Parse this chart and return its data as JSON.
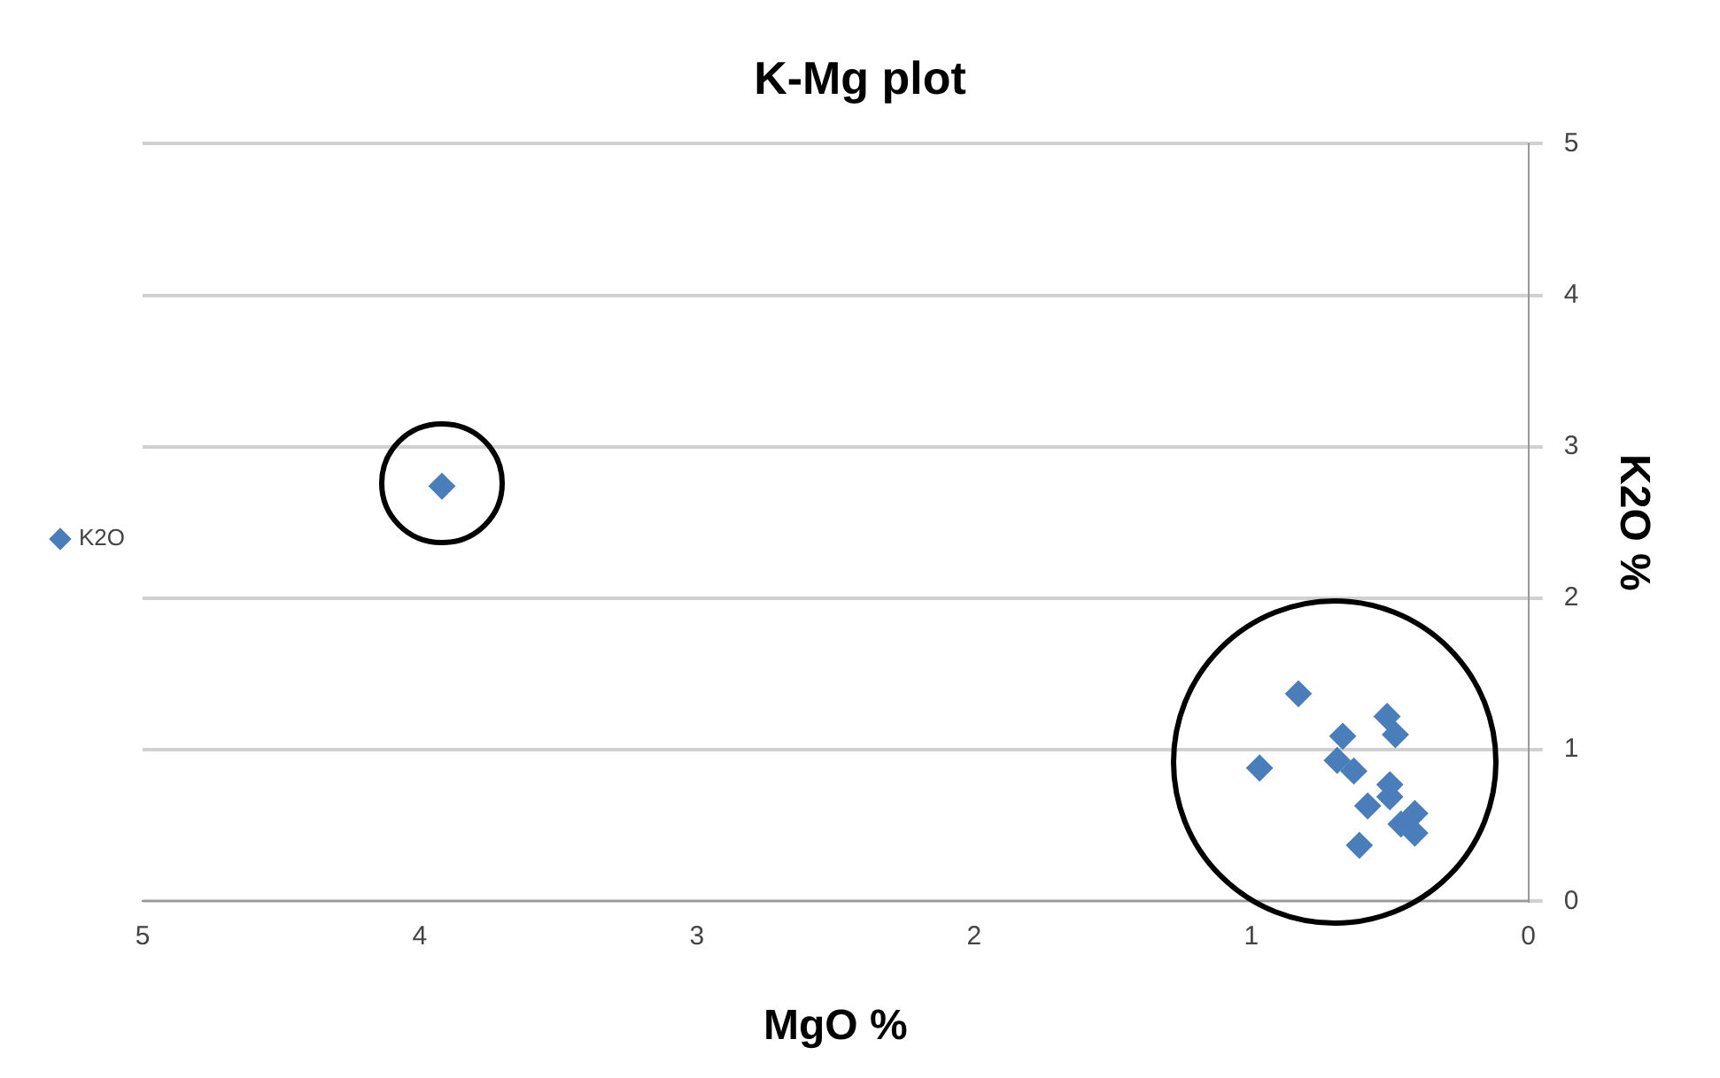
{
  "chart_data": {
    "type": "scatter",
    "title": "K-Mg plot",
    "xlabel": "MgO %",
    "ylabel": "K2O %",
    "series": [
      {
        "name": "K2O",
        "color": "#4a7ebb",
        "x": [
          3.92,
          0.83,
          0.97,
          0.67,
          0.51,
          0.48,
          0.69,
          0.63,
          0.5,
          0.58,
          0.5,
          0.41,
          0.41,
          0.46,
          0.61
        ],
        "values": [
          2.74,
          1.37,
          0.88,
          1.09,
          1.22,
          1.1,
          0.93,
          0.86,
          0.77,
          0.63,
          0.69,
          0.58,
          0.45,
          0.51,
          0.37
        ]
      }
    ],
    "xlim": [
      5,
      0
    ],
    "xticks": [
      5,
      4,
      3,
      2,
      1,
      0
    ],
    "ylim": [
      0,
      5
    ],
    "yticks": [
      0,
      1,
      2,
      3,
      4,
      5
    ],
    "grid": "y",
    "legend": "left",
    "marker": "diamond"
  }
}
